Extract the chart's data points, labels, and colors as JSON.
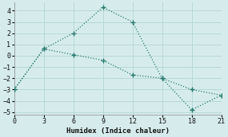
{
  "line1_x": [
    0,
    3,
    6,
    9,
    12,
    15,
    18,
    21
  ],
  "line1_y": [
    -3.0,
    0.6,
    2.0,
    4.3,
    3.0,
    -2.0,
    -4.8,
    -3.5
  ],
  "line2_x": [
    0,
    3,
    6,
    9,
    12,
    15,
    18,
    21
  ],
  "line2_y": [
    -3.0,
    0.6,
    0.1,
    -0.4,
    -1.7,
    -2.0,
    -3.0,
    -3.5
  ],
  "line_color": "#297a70",
  "bg_color": "#d6ecec",
  "grid_color": "#b8d8d8",
  "xlabel": "Humidex (Indice chaleur)",
  "xlim": [
    0,
    21
  ],
  "ylim": [
    -5.2,
    4.7
  ],
  "xticks": [
    0,
    3,
    6,
    9,
    12,
    15,
    18,
    21
  ],
  "yticks": [
    -5,
    -4,
    -3,
    -2,
    -1,
    0,
    1,
    2,
    3,
    4
  ]
}
